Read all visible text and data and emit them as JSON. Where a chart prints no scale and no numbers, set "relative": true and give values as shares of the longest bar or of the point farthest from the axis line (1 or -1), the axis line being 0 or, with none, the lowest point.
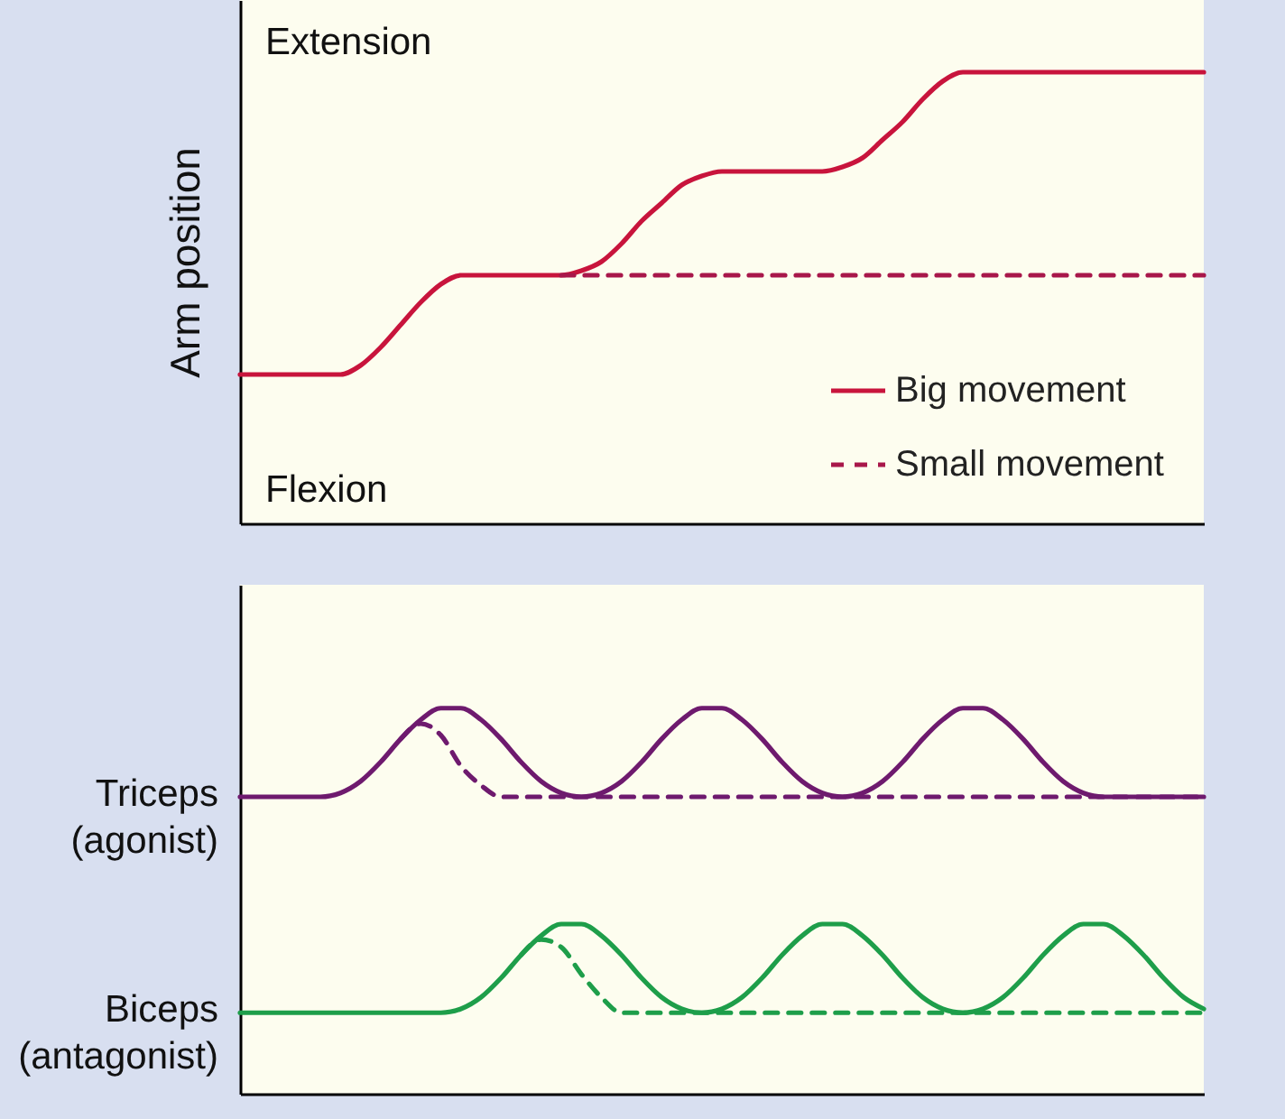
{
  "chart_data": [
    {
      "type": "line",
      "ylabel": "Arm position",
      "relative": true,
      "legend": "bottom right",
      "annotations": [
        "Extension",
        "Flexion"
      ],
      "categories": [
        null,
        null,
        null,
        null,
        null,
        null,
        null,
        null,
        null,
        null,
        null,
        null,
        null,
        null,
        null,
        null,
        null,
        null,
        null,
        null,
        null,
        null,
        null,
        null,
        null,
        null,
        null,
        null,
        null,
        null,
        null,
        null,
        null,
        null,
        null,
        null,
        null,
        null,
        null,
        null,
        null,
        null,
        null,
        null,
        null,
        null,
        null,
        null,
        null
      ],
      "series": [
        {
          "name": "Big movement",
          "color": "#c8143c",
          "line_style": "solid",
          "values": [
            0.33,
            0.33,
            0.33,
            0.33,
            0.33,
            0.33,
            0.35,
            0.39,
            0.44,
            0.49,
            0.53,
            0.55,
            0.55,
            0.55,
            0.55,
            0.55,
            0.55,
            0.56,
            0.58,
            0.62,
            0.67,
            0.71,
            0.75,
            0.77,
            0.78,
            0.78,
            0.78,
            0.78,
            0.78,
            0.78,
            0.79,
            0.81,
            0.85,
            0.89,
            0.94,
            0.98,
            1,
            1,
            1,
            1,
            1,
            1,
            1,
            1,
            1,
            1,
            1,
            1,
            1
          ]
        },
        {
          "name": "Small movement",
          "color": "#a8174a",
          "line_style": "dashed",
          "values": [
            null,
            null,
            null,
            null,
            null,
            null,
            null,
            null,
            null,
            null,
            null,
            null,
            null,
            null,
            null,
            null,
            0.55,
            0.55,
            0.55,
            0.55,
            0.55,
            0.55,
            0.55,
            0.55,
            0.55,
            0.55,
            0.55,
            0.55,
            0.55,
            0.55,
            0.55,
            0.55,
            0.55,
            0.55,
            0.55,
            0.55,
            0.55,
            0.55,
            0.55,
            0.55,
            0.55,
            0.55,
            0.55,
            0.55,
            0.55,
            0.55,
            0.55,
            0.55,
            0.55
          ]
        }
      ]
    },
    {
      "type": "line",
      "relative": true,
      "categories": [
        null,
        null,
        null,
        null,
        null,
        null,
        null,
        null,
        null,
        null,
        null,
        null,
        null,
        null,
        null,
        null,
        null,
        null,
        null,
        null,
        null,
        null,
        null,
        null,
        null,
        null,
        null,
        null,
        null,
        null,
        null,
        null,
        null,
        null,
        null,
        null,
        null,
        null,
        null,
        null,
        null,
        null,
        null,
        null,
        null,
        null,
        null,
        null,
        null
      ],
      "series": [
        {
          "name": "Triceps (agonist)",
          "color": "#6e1a6e",
          "line_style": "solid",
          "values": [
            0.77,
            0.77,
            0.77,
            0.77,
            0.77,
            0.78,
            0.81,
            0.86,
            0.92,
            0.97,
            1,
            1,
            0.97,
            0.92,
            0.86,
            0.81,
            0.78,
            0.77,
            0.78,
            0.81,
            0.86,
            0.92,
            0.97,
            1,
            1,
            0.97,
            0.92,
            0.86,
            0.81,
            0.78,
            0.77,
            0.78,
            0.81,
            0.86,
            0.92,
            0.97,
            1,
            1,
            0.97,
            0.92,
            0.86,
            0.81,
            0.78,
            0.77,
            0.77,
            0.77,
            0.77,
            0.77,
            0.77
          ]
        },
        {
          "color": "#6e1a6e",
          "line_style": "dashed",
          "values": [
            null,
            null,
            null,
            null,
            null,
            null,
            null,
            null,
            0.92,
            0.96,
            0.93,
            0.85,
            0.8,
            0.77,
            0.77,
            0.77,
            0.77,
            0.77,
            0.77,
            0.77,
            0.77,
            0.77,
            0.77,
            0.77,
            0.77,
            0.77,
            0.77,
            0.77,
            0.77,
            0.77,
            0.77,
            0.77,
            0.77,
            0.77,
            0.77,
            0.77,
            0.77,
            0.77,
            0.77,
            0.77,
            0.77,
            0.77,
            0.77,
            0.77,
            0.77,
            0.77,
            0.77,
            0.77,
            0.77
          ]
        },
        {
          "name": "Biceps (antagonist)",
          "color": "#1e9e4a",
          "line_style": "solid",
          "values": [
            0.21,
            0.21,
            0.21,
            0.21,
            0.21,
            0.21,
            0.21,
            0.21,
            0.21,
            0.21,
            0.21,
            0.22,
            0.25,
            0.3,
            0.36,
            0.41,
            0.44,
            0.44,
            0.41,
            0.36,
            0.3,
            0.25,
            0.22,
            0.21,
            0.22,
            0.25,
            0.3,
            0.36,
            0.41,
            0.44,
            0.44,
            0.41,
            0.36,
            0.3,
            0.25,
            0.22,
            0.21,
            0.22,
            0.25,
            0.3,
            0.36,
            0.41,
            0.44,
            0.44,
            0.41,
            0.36,
            0.3,
            0.25,
            0.22
          ]
        },
        {
          "color": "#1e9e4a",
          "line_style": "dashed",
          "values": [
            null,
            null,
            null,
            null,
            null,
            null,
            null,
            null,
            null,
            null,
            null,
            null,
            null,
            null,
            0.36,
            0.4,
            0.38,
            0.31,
            0.25,
            0.21,
            0.21,
            0.21,
            0.21,
            0.21,
            0.21,
            0.21,
            0.21,
            0.21,
            0.21,
            0.21,
            0.21,
            0.21,
            0.21,
            0.21,
            0.21,
            0.21,
            0.21,
            0.21,
            0.21,
            0.21,
            0.21,
            0.21,
            0.21,
            0.21,
            0.21,
            0.21,
            0.21,
            0.21,
            0.21
          ]
        }
      ]
    }
  ]
}
